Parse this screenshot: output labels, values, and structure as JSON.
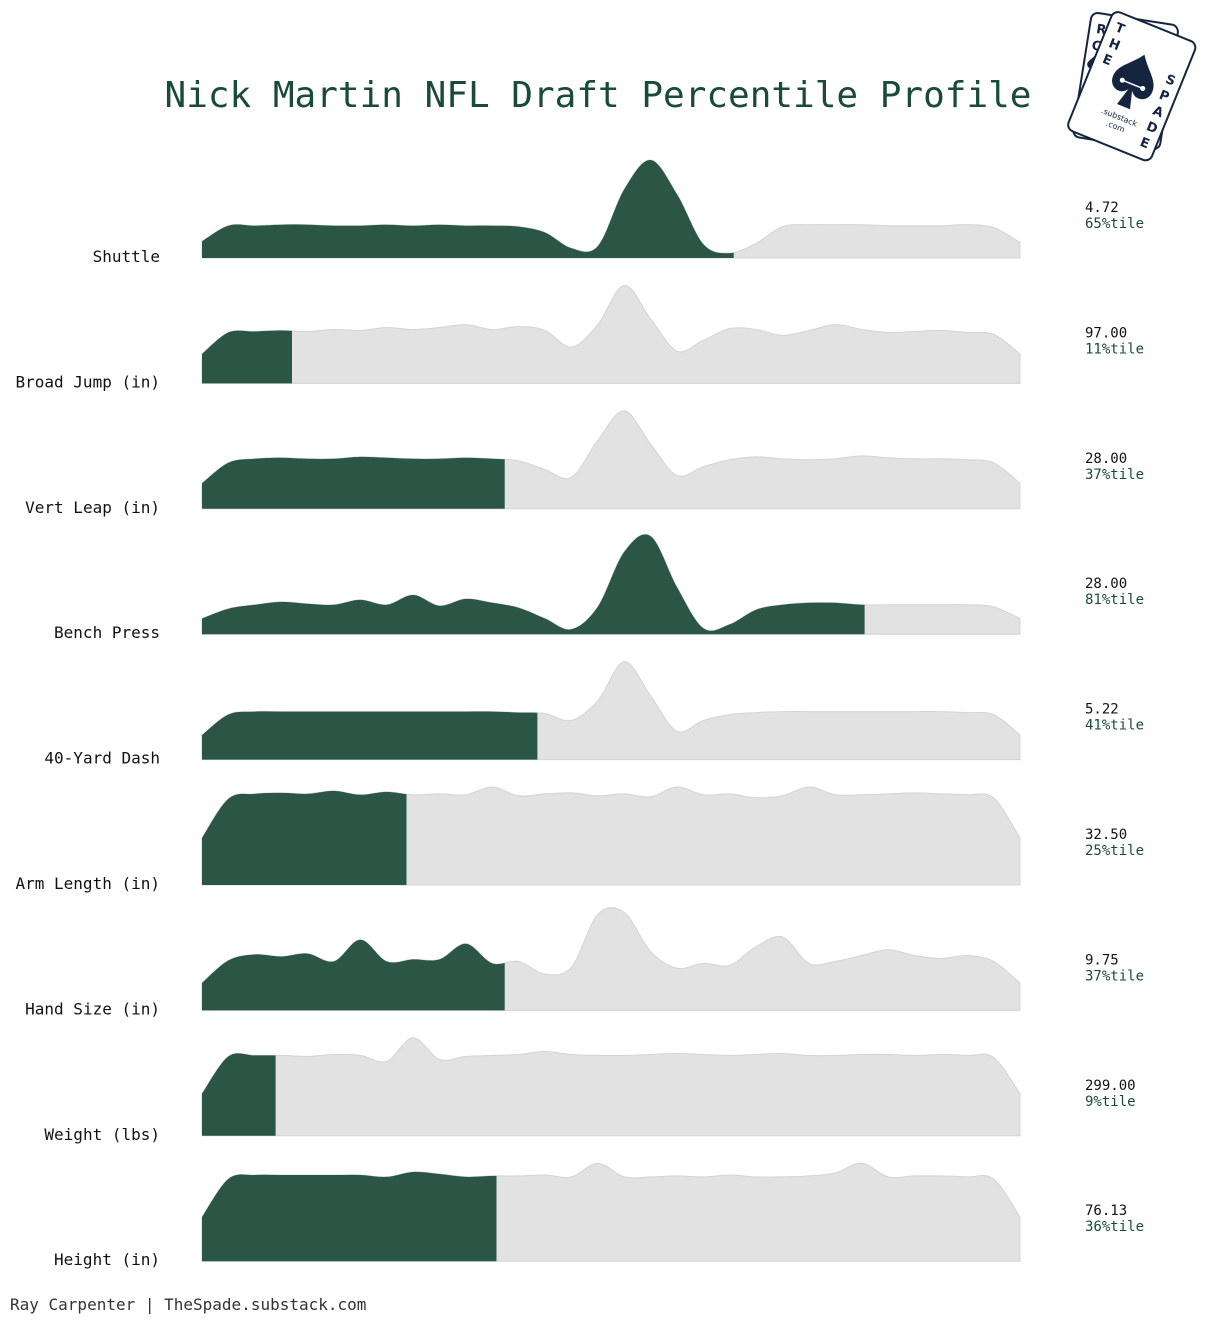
{
  "chart_data": {
    "type": "area",
    "title": "Nick Martin NFL Draft Percentile Profile",
    "credit": "Ray Carpenter | TheSpade.substack.com",
    "colors": {
      "highlight": "#2b5646",
      "background": "#e2e2e2",
      "title": "#1a4a38"
    },
    "logo": {
      "back_card_letters": [
        "R",
        "C"
      ],
      "front_card_top": [
        "T",
        "H",
        "E"
      ],
      "front_card_right": [
        "S",
        "P",
        "A",
        "D",
        "E"
      ],
      "front_card_bottom": ".substack\n.com",
      "icon": "spade-icon"
    },
    "metrics": [
      {
        "name": "Shuttle",
        "value": "4.72",
        "percentile": 65,
        "percentile_label": "65%tile",
        "density": [
          0.17,
          0.33,
          0.33,
          0.34,
          0.34,
          0.33,
          0.33,
          0.34,
          0.33,
          0.34,
          0.33,
          0.33,
          0.32,
          0.26,
          0.1,
          0.12,
          0.7,
          1.0,
          0.65,
          0.14,
          0.05,
          0.15,
          0.32,
          0.34,
          0.34,
          0.34,
          0.33,
          0.33,
          0.33,
          0.34,
          0.31,
          0.16
        ]
      },
      {
        "name": "Broad Jump (in)",
        "value": "97.00",
        "percentile": 11,
        "percentile_label": "11%tile",
        "density": [
          0.3,
          0.52,
          0.53,
          0.54,
          0.53,
          0.55,
          0.54,
          0.57,
          0.55,
          0.57,
          0.6,
          0.55,
          0.58,
          0.54,
          0.37,
          0.6,
          1.0,
          0.66,
          0.33,
          0.44,
          0.56,
          0.55,
          0.49,
          0.54,
          0.6,
          0.55,
          0.52,
          0.53,
          0.54,
          0.52,
          0.5,
          0.3
        ]
      },
      {
        "name": "Vert Leap (in)",
        "value": "28.00",
        "percentile": 37,
        "percentile_label": "37%tile",
        "density": [
          0.26,
          0.47,
          0.51,
          0.52,
          0.51,
          0.51,
          0.53,
          0.52,
          0.51,
          0.51,
          0.52,
          0.51,
          0.49,
          0.4,
          0.32,
          0.7,
          1.0,
          0.66,
          0.34,
          0.43,
          0.5,
          0.53,
          0.51,
          0.5,
          0.51,
          0.54,
          0.52,
          0.51,
          0.51,
          0.5,
          0.47,
          0.26
        ]
      },
      {
        "name": "Bench Press",
        "value": "28.00",
        "percentile": 81,
        "percentile_label": "81%tile",
        "density": [
          0.16,
          0.26,
          0.3,
          0.33,
          0.31,
          0.3,
          0.35,
          0.3,
          0.4,
          0.29,
          0.36,
          0.32,
          0.27,
          0.16,
          0.05,
          0.28,
          0.84,
          1.0,
          0.48,
          0.06,
          0.1,
          0.25,
          0.3,
          0.32,
          0.32,
          0.3,
          0.3,
          0.3,
          0.3,
          0.3,
          0.28,
          0.16
        ]
      },
      {
        "name": "40-Yard Dash",
        "value": "5.22",
        "percentile": 41,
        "percentile_label": "41%tile",
        "density": [
          0.25,
          0.46,
          0.49,
          0.49,
          0.49,
          0.49,
          0.49,
          0.49,
          0.49,
          0.49,
          0.49,
          0.49,
          0.48,
          0.47,
          0.4,
          0.6,
          1.0,
          0.65,
          0.29,
          0.4,
          0.46,
          0.48,
          0.49,
          0.49,
          0.49,
          0.49,
          0.49,
          0.49,
          0.49,
          0.48,
          0.46,
          0.25
        ]
      },
      {
        "name": "Arm Length (in)",
        "value": "32.50",
        "percentile": 25,
        "percentile_label": "25%tile",
        "density": [
          0.48,
          0.88,
          0.93,
          0.94,
          0.93,
          0.96,
          0.92,
          0.95,
          0.92,
          0.93,
          0.92,
          1.0,
          0.91,
          0.93,
          0.94,
          0.91,
          0.93,
          0.9,
          1.0,
          0.92,
          0.93,
          0.89,
          0.91,
          1.0,
          0.92,
          0.92,
          0.93,
          0.94,
          0.93,
          0.92,
          0.89,
          0.48
        ]
      },
      {
        "name": "Hand Size (in)",
        "value": "9.75",
        "percentile": 37,
        "percentile_label": "37%tile",
        "density": [
          0.28,
          0.51,
          0.57,
          0.55,
          0.58,
          0.5,
          0.72,
          0.5,
          0.52,
          0.52,
          0.68,
          0.48,
          0.5,
          0.37,
          0.44,
          0.98,
          1.0,
          0.6,
          0.43,
          0.48,
          0.46,
          0.65,
          0.75,
          0.48,
          0.5,
          0.56,
          0.62,
          0.56,
          0.53,
          0.56,
          0.5,
          0.28
        ]
      },
      {
        "name": "Weight (lbs)",
        "value": "299.00",
        "percentile": 9,
        "percentile_label": "9%tile",
        "density": [
          0.43,
          0.81,
          0.82,
          0.82,
          0.81,
          0.83,
          0.82,
          0.76,
          1.0,
          0.78,
          0.81,
          0.82,
          0.83,
          0.86,
          0.83,
          0.82,
          0.82,
          0.83,
          0.84,
          0.83,
          0.82,
          0.83,
          0.84,
          0.82,
          0.82,
          0.83,
          0.83,
          0.82,
          0.83,
          0.82,
          0.8,
          0.43
        ]
      },
      {
        "name": "Height (in)",
        "value": "76.13",
        "percentile": 36,
        "percentile_label": "36%tile",
        "density": [
          0.45,
          0.84,
          0.88,
          0.88,
          0.88,
          0.88,
          0.88,
          0.86,
          0.91,
          0.89,
          0.86,
          0.87,
          0.87,
          0.88,
          0.86,
          1.0,
          0.86,
          0.86,
          0.87,
          0.86,
          0.88,
          0.86,
          0.86,
          0.87,
          0.9,
          1.0,
          0.86,
          0.87,
          0.87,
          0.86,
          0.84,
          0.45
        ]
      }
    ]
  }
}
